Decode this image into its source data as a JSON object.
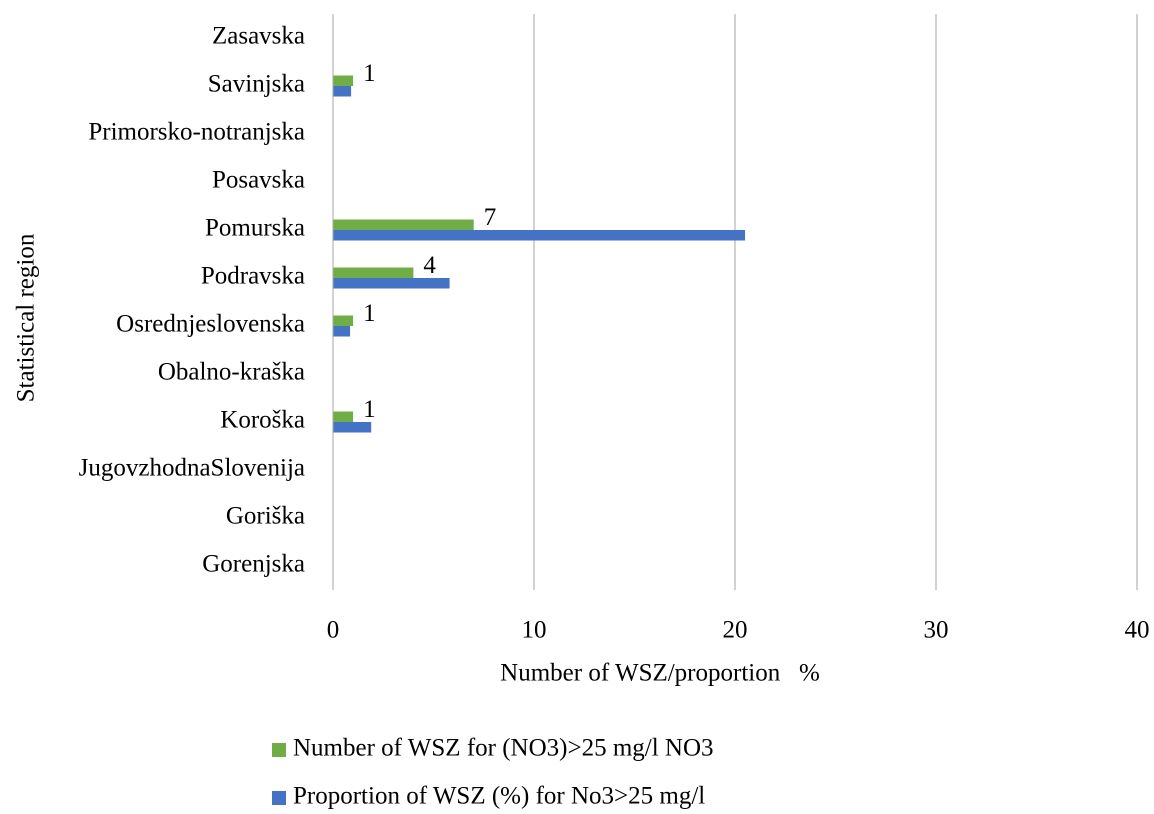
{
  "chart_data": {
    "type": "barh",
    "xlabel": "Number of WSZ/proportion   %",
    "ylabel": "Statistical region",
    "categories": [
      "Gorenjska",
      "Goriška",
      "JugovzhodnaSlovenija",
      "Koroška",
      "Obalno-kraška",
      "Osrednjeslovenska",
      "Podravska",
      "Pomurska",
      "Posavska",
      "Primorsko-notranjska",
      "Savinjska",
      "Zasavska"
    ],
    "series": [
      {
        "name": "Number of WSZ for (NO3)>25 mg/l NO3",
        "color": "#70ad47",
        "values": [
          null,
          null,
          null,
          1,
          null,
          1,
          4,
          7,
          null,
          null,
          1,
          null
        ],
        "data_labels": true
      },
      {
        "name": "Proportion of WSZ (%) for No3>25 mg/l",
        "color": "#4472c4",
        "values": [
          null,
          null,
          null,
          1.9,
          null,
          0.85,
          5.8,
          20.5,
          null,
          null,
          0.9,
          null
        ],
        "data_labels": false
      }
    ],
    "xlim": [
      0,
      40
    ],
    "xticks": [
      0,
      10,
      20,
      30,
      40
    ],
    "grid": true,
    "legend": "bottom"
  }
}
